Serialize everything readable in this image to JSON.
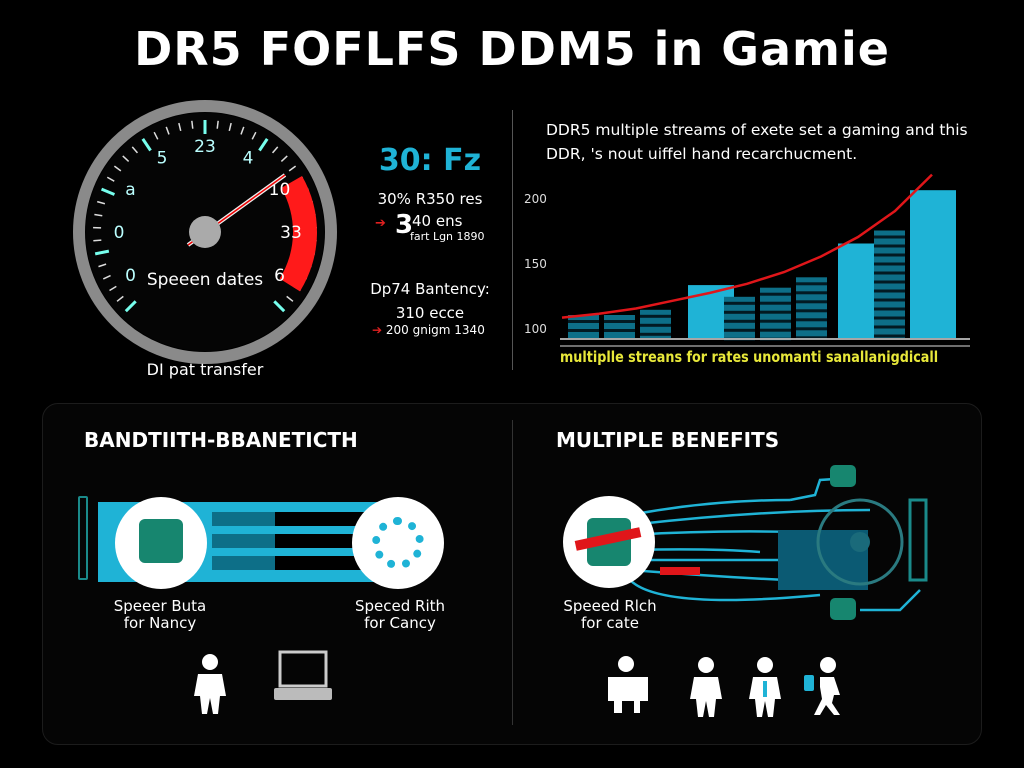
{
  "title": "DR5 FOFLFS DDM5 in Gamie",
  "gauge": {
    "tick_labels": [
      "0",
      "0",
      "a",
      "5",
      "23",
      "4",
      "10",
      "33",
      "6"
    ],
    "inner_label": "Speeen dates",
    "caption": "DI pat transfer",
    "redline_color": "#ff1a1a"
  },
  "stats": {
    "headline": "30: Fz",
    "line1": "30% R350 res",
    "big_value": "3",
    "big_value_sup": "40 ens",
    "big_value_sub": "fart Lgn 1890",
    "latency_label": "Dp74 Bantency:",
    "latency_value": "310 ecce",
    "latency_sub": "200 gnigm 1340",
    "accent": "#1fb3d6"
  },
  "chart_data": {
    "type": "bar",
    "title": "DDR5 multiple streams of exete set a gaming and this  DDR, 's nout uiffel hand recarchucment.",
    "xlabel": "multiplle streans for rates unomanti sanallanigdicall",
    "ylabel": "",
    "yticks": [
      100,
      150,
      200
    ],
    "ytick_labels": [
      "100",
      "150",
      "200"
    ],
    "ylim": [
      92,
      215
    ],
    "values": [
      110,
      110,
      114,
      133,
      124,
      131,
      139,
      165,
      175,
      206
    ],
    "styles": [
      "striped",
      "striped",
      "striped",
      "solid",
      "striped",
      "striped",
      "striped",
      "solid",
      "striped",
      "solid"
    ],
    "trend": [
      108,
      111,
      115,
      121,
      127,
      134,
      143,
      155,
      170,
      190,
      218
    ],
    "bar_color": "#1fb3d6",
    "trend_color": "#e0161a",
    "xlabel_color": "#e8e83a"
  },
  "bandwidth": {
    "heading": "BANDTIITH-BBANETICTH",
    "left_label": [
      "Speeer Buta",
      "for Nancy"
    ],
    "right_label": [
      "Speced Rith",
      "for Cancy"
    ],
    "icons": [
      "person-icon",
      "laptop-icon"
    ]
  },
  "benefits": {
    "heading": "MULTIPLE BENEFITS",
    "label": [
      "Speeed Rlch",
      "for cate"
    ],
    "icons": [
      "person-icon",
      "person-icon",
      "person-icon",
      "walking-person-icon"
    ]
  }
}
